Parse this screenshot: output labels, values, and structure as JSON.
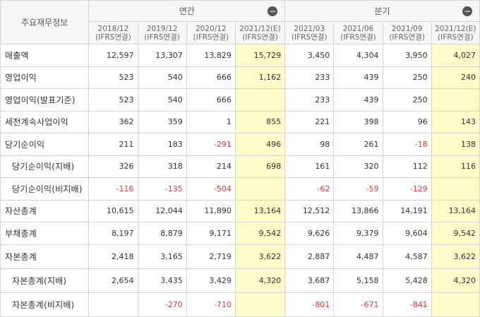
{
  "header": {
    "row_label": "주요재무정보",
    "group_annual": "연간",
    "group_quarter": "분기",
    "collapse_symbol": "−",
    "periods": [
      {
        "date": "2018/12",
        "basis": "(IFRS연결)"
      },
      {
        "date": "2019/12",
        "basis": "(IFRS연결)"
      },
      {
        "date": "2020/12",
        "basis": "(IFRS연결)"
      },
      {
        "date": "2021/12(E)",
        "basis": "(IFRS연결)"
      },
      {
        "date": "2021/03",
        "basis": "(IFRS연결)"
      },
      {
        "date": "2021/06",
        "basis": "(IFRS연결)"
      },
      {
        "date": "2021/09",
        "basis": "(IFRS연결)"
      },
      {
        "date": "2021/12(E)",
        "basis": "(IFRS연결)"
      }
    ]
  },
  "rows": [
    {
      "label": "매출액",
      "values": [
        "12,597",
        "13,307",
        "13,829",
        "15,729",
        "3,450",
        "4,304",
        "3,950",
        "4,027"
      ]
    },
    {
      "label": "영업이익",
      "values": [
        "523",
        "540",
        "666",
        "1,162",
        "233",
        "439",
        "250",
        "240"
      ]
    },
    {
      "label": "영업이익(발표기준)",
      "values": [
        "523",
        "540",
        "666",
        "",
        "233",
        "439",
        "250",
        ""
      ]
    },
    {
      "label": "세전계속사업이익",
      "values": [
        "362",
        "359",
        "1",
        "855",
        "221",
        "398",
        "96",
        "143"
      ]
    },
    {
      "label": "당기순이익",
      "values": [
        "211",
        "183",
        "-291",
        "496",
        "98",
        "261",
        "-18",
        "138"
      ]
    },
    {
      "label": "당기순이익(지배)",
      "values": [
        "326",
        "318",
        "214",
        "698",
        "161",
        "320",
        "112",
        "116"
      ]
    },
    {
      "label": "당기순이익(비지배)",
      "values": [
        "-116",
        "-135",
        "-504",
        "",
        "-62",
        "-59",
        "-129",
        ""
      ]
    },
    {
      "label": "자산총계",
      "values": [
        "10,615",
        "12,044",
        "11,890",
        "13,164",
        "12,512",
        "13,866",
        "14,191",
        "13,164"
      ]
    },
    {
      "label": "부채총계",
      "values": [
        "8,197",
        "8,879",
        "9,171",
        "9,542",
        "9,626",
        "9,379",
        "9,604",
        "9,542"
      ]
    },
    {
      "label": "자본총계",
      "values": [
        "2,418",
        "3,165",
        "2,719",
        "3,622",
        "2,887",
        "4,487",
        "4,587",
        "3,622"
      ]
    },
    {
      "label": "자본총계(지배)",
      "values": [
        "2,654",
        "3,435",
        "3,429",
        "4,320",
        "3,687",
        "5,158",
        "5,428",
        "4,320"
      ]
    },
    {
      "label": "자본총계(비지배)",
      "values": [
        "",
        "-270",
        "-710",
        "",
        "-801",
        "-671",
        "-841",
        ""
      ]
    }
  ],
  "colors": {
    "negative": "#e23a3a",
    "estimate_bg": "#fdfbc8",
    "header_bg": "#f7f7f7",
    "border": "#d6d6d6"
  }
}
